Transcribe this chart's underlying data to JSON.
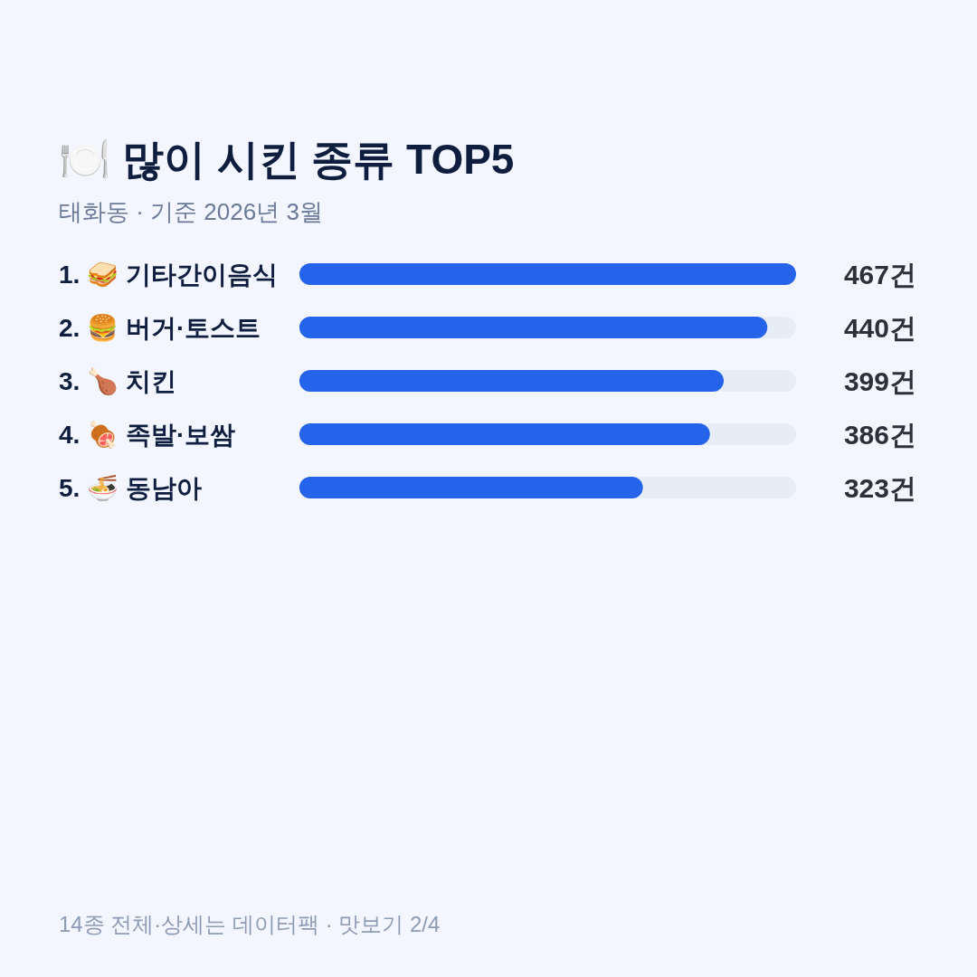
{
  "chart_data": {
    "type": "bar",
    "orientation": "horizontal",
    "title": "🍽️ 많이 시킨 종류 TOP5",
    "subtitle": "태화동 · 기준 2026년 3월",
    "categories": [
      "1. 🥪 기타간이음식",
      "2. 🍔 버거·토스트",
      "3. 🍗 치킨",
      "4. 🍖 족발·보쌈",
      "5. 🍜 동남아"
    ],
    "values": [
      467,
      440,
      399,
      386,
      323
    ],
    "value_labels": [
      "467건",
      "440건",
      "399건",
      "386건",
      "323건"
    ],
    "color": "#2563eb",
    "xlim": [
      0,
      467
    ],
    "annotations": [
      "14종 전체·상세는 데이터팩 · 맛보기 2/4"
    ]
  }
}
